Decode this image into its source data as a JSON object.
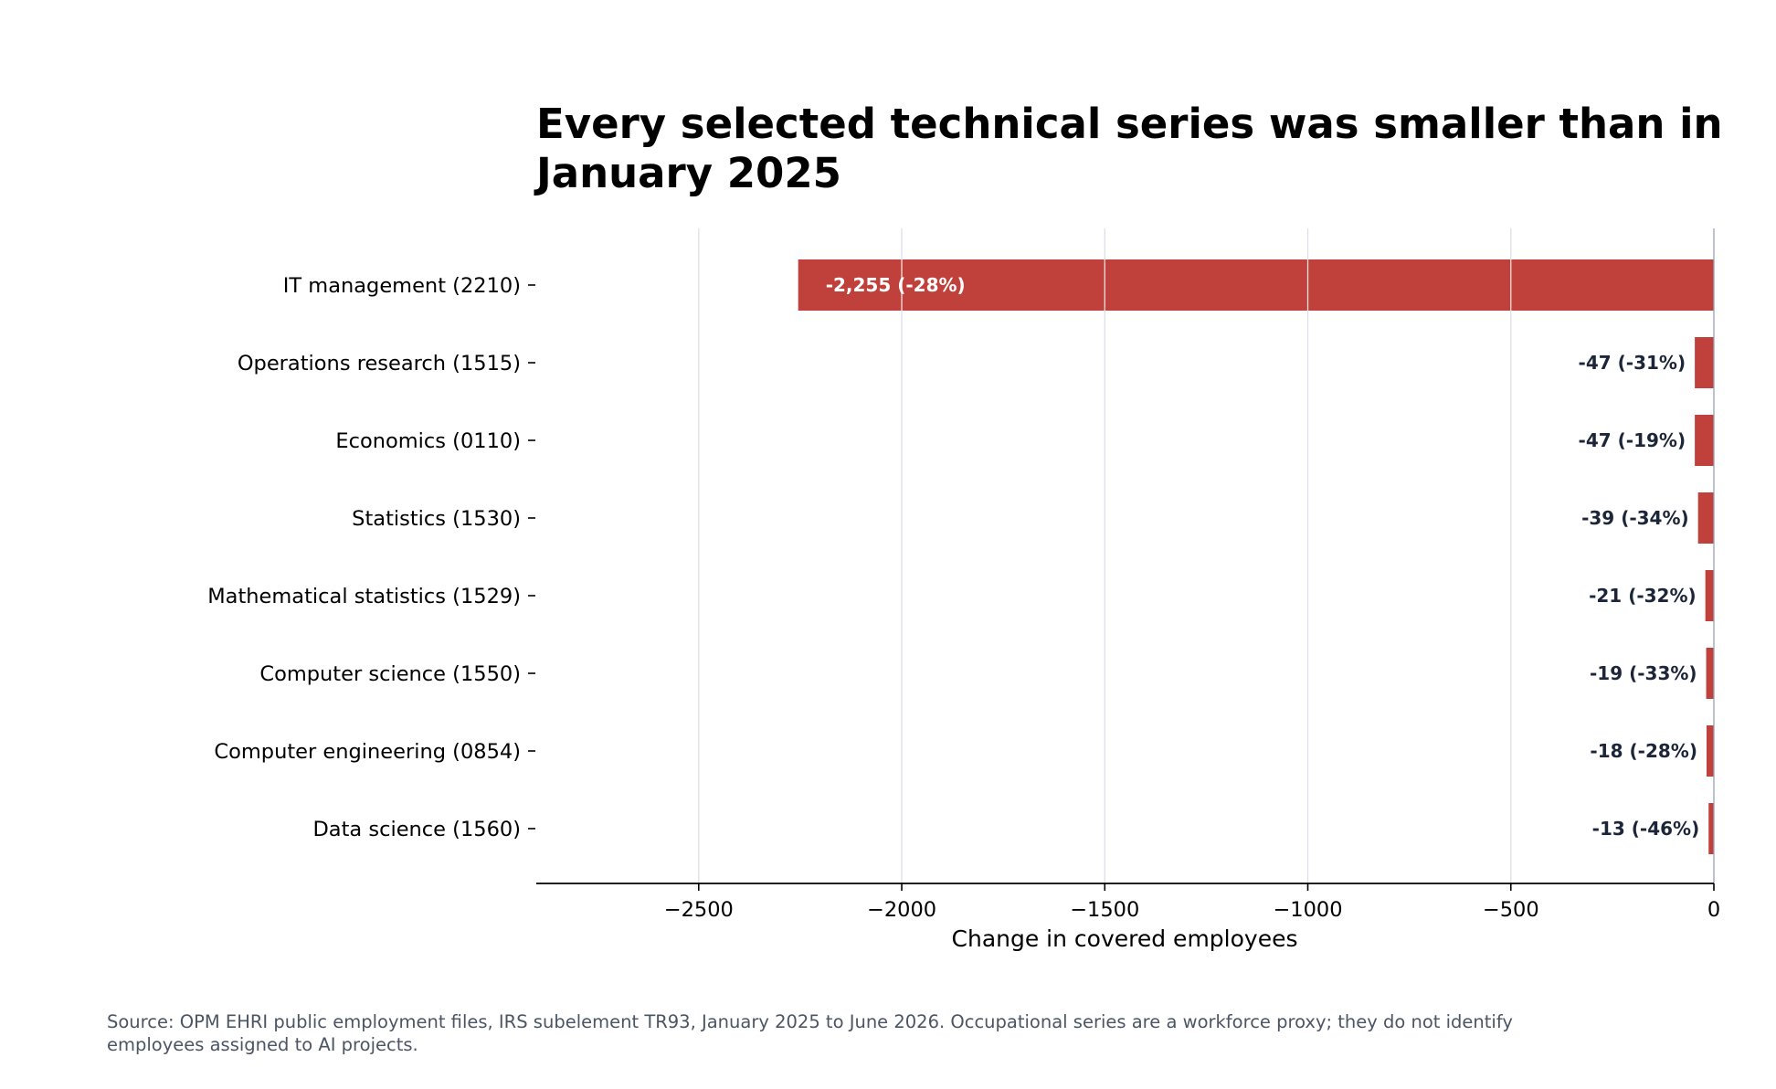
{
  "chart_data": {
    "type": "bar",
    "orientation": "horizontal",
    "title_lines": [
      "Every selected technical series was smaller than in",
      "January 2025"
    ],
    "xlabel": "Change in covered employees",
    "ylabel": "",
    "xlim": [
      -2900,
      0
    ],
    "x_ticks": [
      -2500,
      -2000,
      -1500,
      -1000,
      -500,
      0
    ],
    "x_tick_labels": [
      "−2500",
      "−2000",
      "−1500",
      "−1000",
      "−500",
      "0"
    ],
    "grid": "vertical",
    "categories": [
      "IT management (2210)",
      "Operations research (1515)",
      "Economics (0110)",
      "Statistics (1530)",
      "Mathematical statistics (1529)",
      "Computer science (1550)",
      "Computer engineering (0854)",
      "Data science (1560)"
    ],
    "values": [
      -2255,
      -47,
      -47,
      -39,
      -21,
      -19,
      -18,
      -13
    ],
    "data_labels": [
      "-2,255 (-28%)",
      "-47 (-31%)",
      "-47 (-19%)",
      "-39 (-34%)",
      "-21 (-32%)",
      "-19 (-33%)",
      "-18 (-28%)",
      "-13 (-46%)"
    ],
    "source": "Source: OPM EHRI public employment files, IRS subelement TR93, January 2025 to June 2026. Occupational series are a workforce proxy; they do not identify employees assigned to AI projects."
  },
  "colors": {
    "bar": "#c0413b",
    "label_inside": "#ffffff",
    "label_outside": "#1c2638",
    "grid": "#dcdfe8",
    "zero_line": "#9aa0b4",
    "source_text": "#4b5563"
  }
}
